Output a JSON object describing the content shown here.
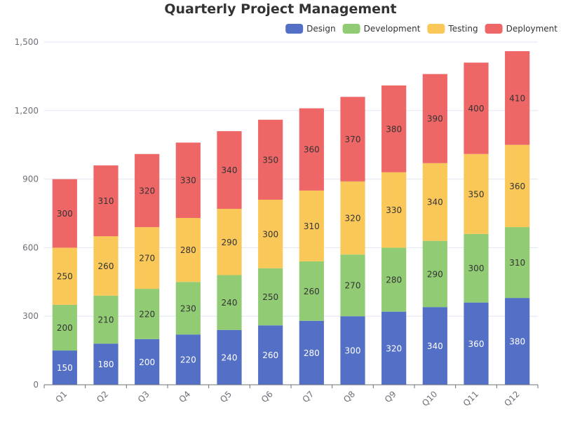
{
  "chart_data": {
    "type": "bar",
    "stacked": true,
    "title": "Quarterly Project Management",
    "xlabel": "",
    "ylabel": "",
    "categories": [
      "Q1",
      "Q2",
      "Q3",
      "Q4",
      "Q5",
      "Q6",
      "Q7",
      "Q8",
      "Q9",
      "Q10",
      "Q11",
      "Q12"
    ],
    "series": [
      {
        "name": "Design",
        "color": "#5470c6",
        "label_color": "#ffffff",
        "values": [
          150,
          180,
          200,
          220,
          240,
          260,
          280,
          300,
          320,
          340,
          360,
          380
        ]
      },
      {
        "name": "Development",
        "color": "#91cc75",
        "label_color": "#333333",
        "values": [
          200,
          210,
          220,
          230,
          240,
          250,
          260,
          270,
          280,
          290,
          300,
          310
        ]
      },
      {
        "name": "Testing",
        "color": "#fac858",
        "label_color": "#333333",
        "values": [
          250,
          260,
          270,
          280,
          290,
          300,
          310,
          320,
          330,
          340,
          350,
          360
        ]
      },
      {
        "name": "Deployment",
        "color": "#ee6666",
        "label_color": "#333333",
        "values": [
          300,
          310,
          320,
          330,
          340,
          350,
          360,
          370,
          380,
          390,
          400,
          410
        ]
      }
    ],
    "ylim": [
      0,
      1500
    ],
    "y_ticks": [
      0,
      300,
      600,
      900,
      1200,
      1500
    ],
    "y_tick_labels": [
      "0",
      "300",
      "600",
      "900",
      "1,200",
      "1,500"
    ],
    "grid": true,
    "legend_position": "top-right",
    "data_labels": true
  }
}
